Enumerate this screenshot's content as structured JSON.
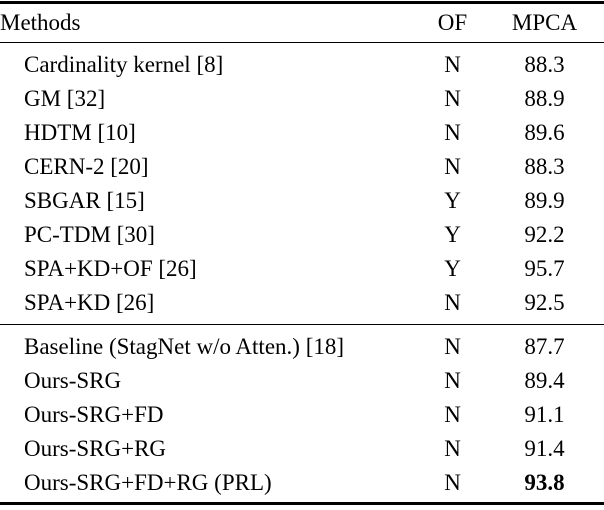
{
  "page": {
    "background_color": "#ffffff",
    "text_color": "#000000",
    "rule_color": "#000000"
  },
  "table": {
    "columns": [
      {
        "label": "Methods"
      },
      {
        "label": "OF"
      },
      {
        "label": "MPCA"
      }
    ],
    "sections": [
      {
        "rows": [
          {
            "method": "Cardinality kernel [8]",
            "of": "N",
            "mpca": "88.3"
          },
          {
            "method": "GM [32]",
            "of": "N",
            "mpca": "88.9"
          },
          {
            "method": "HDTM [10]",
            "of": "N",
            "mpca": "89.6"
          },
          {
            "method": "CERN-2 [20]",
            "of": "N",
            "mpca": "88.3"
          },
          {
            "method": "SBGAR [15]",
            "of": "Y",
            "mpca": "89.9"
          },
          {
            "method": "PC-TDM [30]",
            "of": "Y",
            "mpca": "92.2"
          },
          {
            "method": "SPA+KD+OF [26]",
            "of": "Y",
            "mpca": "95.7"
          },
          {
            "method": "SPA+KD [26]",
            "of": "N",
            "mpca": "92.5"
          }
        ]
      },
      {
        "rows": [
          {
            "method": "Baseline (StagNet w/o Atten.) [18]",
            "of": "N",
            "mpca": "87.7"
          },
          {
            "method": "Ours-SRG",
            "of": "N",
            "mpca": "89.4"
          },
          {
            "method": "Ours-SRG+FD",
            "of": "N",
            "mpca": "91.1"
          },
          {
            "method": "Ours-SRG+RG",
            "of": "N",
            "mpca": "91.4"
          },
          {
            "method": "Ours-SRG+FD+RG (PRL)",
            "of": "N",
            "mpca": "93.8",
            "bold": true
          }
        ]
      }
    ]
  }
}
